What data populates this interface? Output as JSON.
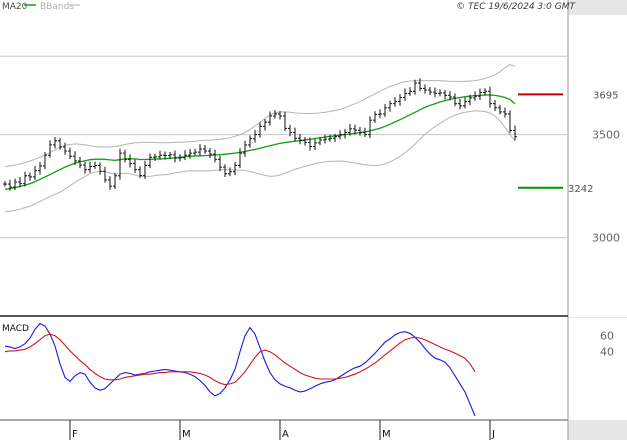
{
  "header": {
    "legend_ma": "MA20",
    "legend_bb": "BBands",
    "copyright": "© TEC 19/6/2024 3:0 GMT"
  },
  "colors": {
    "ma": "#10a010",
    "bands": "#b4b4b4",
    "bars": "#111111",
    "resistance": "#c00000",
    "support": "#009000",
    "macd": "#1a1ae0",
    "signal": "#d01818",
    "sidebar": "#e6e6e6",
    "grid": "#c8c8c8"
  },
  "chart_data": [
    {
      "type": "ohlc",
      "name": "price",
      "y_ticks": [
        "3500",
        "3000"
      ],
      "y_tick_values": [
        3500,
        3000
      ],
      "ylim": [
        2620,
        4080
      ],
      "indicators": [
        "MA20",
        "BBands"
      ],
      "x_labels": [
        "F",
        "M",
        "A",
        "M",
        "J"
      ],
      "x_label_index": [
        13,
        35,
        55,
        75,
        97
      ],
      "levels": [
        {
          "label": "3695",
          "value": 3695,
          "role": "resistance"
        },
        {
          "label": "3242",
          "value": 3242,
          "role": "support"
        }
      ],
      "close": [
        3260,
        3245,
        3270,
        3262,
        3300,
        3295,
        3325,
        3348,
        3400,
        3450,
        3470,
        3440,
        3420,
        3395,
        3372,
        3352,
        3330,
        3345,
        3350,
        3322,
        3280,
        3250,
        3300,
        3410,
        3380,
        3360,
        3330,
        3302,
        3350,
        3390,
        3392,
        3400,
        3398,
        3402,
        3386,
        3388,
        3400,
        3410,
        3415,
        3430,
        3420,
        3405,
        3380,
        3342,
        3310,
        3320,
        3350,
        3410,
        3450,
        3480,
        3500,
        3540,
        3560,
        3590,
        3600,
        3590,
        3530,
        3510,
        3482,
        3472,
        3462,
        3442,
        3460,
        3474,
        3478,
        3482,
        3490,
        3500,
        3510,
        3528,
        3521,
        3510,
        3500,
        3570,
        3598,
        3600,
        3630,
        3650,
        3660,
        3680,
        3700,
        3710,
        3750,
        3724,
        3716,
        3706,
        3700,
        3702,
        3690,
        3682,
        3650,
        3640,
        3660,
        3678,
        3686,
        3704,
        3710,
        3650,
        3630,
        3610,
        3600,
        3520,
        3490
      ],
      "ma20": [
        3235,
        3238,
        3242,
        3248,
        3255,
        3262,
        3272,
        3283,
        3294,
        3306,
        3318,
        3330,
        3342,
        3352,
        3362,
        3368,
        3373,
        3378,
        3380,
        3381,
        3380,
        3377,
        3375,
        3378,
        3382,
        3383,
        3382,
        3379,
        3379,
        3380,
        3381,
        3382,
        3383,
        3385,
        3388,
        3390,
        3393,
        3395,
        3396,
        3397,
        3398,
        3399,
        3401,
        3403,
        3405,
        3407,
        3410,
        3414,
        3418,
        3423,
        3428,
        3434,
        3440,
        3446,
        3452,
        3457,
        3461,
        3465,
        3468,
        3471,
        3474,
        3477,
        3481,
        3484,
        3488,
        3491,
        3494,
        3497,
        3500,
        3503,
        3506,
        3509,
        3513,
        3518,
        3524,
        3531,
        3540,
        3550,
        3561,
        3572,
        3584,
        3596,
        3608,
        3620,
        3632,
        3642,
        3650,
        3658,
        3665,
        3671,
        3676,
        3680,
        3683,
        3686,
        3689,
        3690,
        3692,
        3692,
        3690,
        3686,
        3680,
        3670,
        3650
      ],
      "bb_upper": [
        3345,
        3348,
        3352,
        3358,
        3364,
        3372,
        3380,
        3390,
        3400,
        3412,
        3426,
        3440,
        3448,
        3452,
        3455,
        3453,
        3450,
        3446,
        3442,
        3440,
        3439,
        3440,
        3442,
        3446,
        3452,
        3456,
        3460,
        3461,
        3462,
        3462,
        3461,
        3460,
        3460,
        3461,
        3462,
        3463,
        3464,
        3465,
        3468,
        3470,
        3472,
        3473,
        3475,
        3477,
        3480,
        3485,
        3492,
        3500,
        3510,
        3525,
        3542,
        3560,
        3578,
        3595,
        3605,
        3610,
        3610,
        3608,
        3605,
        3603,
        3602,
        3602,
        3603,
        3605,
        3608,
        3612,
        3617,
        3622,
        3630,
        3640,
        3650,
        3660,
        3672,
        3685,
        3698,
        3710,
        3722,
        3733,
        3742,
        3750,
        3756,
        3760,
        3762,
        3762,
        3762,
        3762,
        3762,
        3762,
        3760,
        3758,
        3758,
        3758,
        3758,
        3760,
        3762,
        3766,
        3772,
        3780,
        3790,
        3805,
        3825,
        3840,
        3830
      ],
      "bb_lower": [
        3125,
        3128,
        3132,
        3138,
        3146,
        3152,
        3164,
        3176,
        3188,
        3200,
        3210,
        3220,
        3236,
        3252,
        3269,
        3283,
        3296,
        3310,
        3318,
        3322,
        3321,
        3314,
        3308,
        3310,
        3312,
        3310,
        3304,
        3297,
        3296,
        3298,
        3301,
        3304,
        3306,
        3309,
        3314,
        3317,
        3322,
        3325,
        3324,
        3324,
        3324,
        3325,
        3327,
        3329,
        3330,
        3329,
        3328,
        3328,
        3326,
        3321,
        3314,
        3308,
        3302,
        3297,
        3299,
        3304,
        3312,
        3322,
        3331,
        3339,
        3346,
        3352,
        3359,
        3363,
        3368,
        3370,
        3371,
        3372,
        3370,
        3366,
        3362,
        3358,
        3354,
        3351,
        3350,
        3352,
        3358,
        3367,
        3380,
        3394,
        3412,
        3432,
        3454,
        3478,
        3502,
        3522,
        3538,
        3554,
        3570,
        3584,
        3594,
        3602,
        3608,
        3612,
        3616,
        3614,
        3612,
        3604,
        3590,
        3567,
        3535,
        3500,
        3470
      ]
    },
    {
      "type": "line",
      "name": "MACD",
      "title": "MACD",
      "y_ticks": [
        "60",
        "40"
      ],
      "y_tick_values": [
        60,
        40
      ],
      "ylim": [
        -45,
        82
      ],
      "series": [
        {
          "role": "macd",
          "values": [
            47,
            46,
            44,
            46,
            50,
            57,
            68,
            75,
            72,
            62,
            47,
            25,
            8,
            3,
            10,
            14,
            12,
            2,
            -5,
            -8,
            -6,
            0,
            6,
            12,
            14,
            13,
            11,
            12,
            13,
            15,
            16,
            17,
            18,
            17,
            16,
            15,
            14,
            12,
            9,
            4,
            -2,
            -10,
            -15,
            -12,
            -5,
            5,
            18,
            40,
            60,
            70,
            62,
            45,
            28,
            14,
            5,
            0,
            -3,
            -5,
            -8,
            -10,
            -9,
            -6,
            -3,
            0,
            2,
            3,
            5,
            9,
            13,
            17,
            20,
            22,
            26,
            32,
            38,
            45,
            52,
            56,
            61,
            64,
            65,
            63,
            58,
            52,
            44,
            37,
            32,
            30,
            27,
            20,
            10,
            0,
            -10,
            -25,
            -40
          ]
        },
        {
          "role": "signal",
          "values": [
            40,
            41,
            41,
            42,
            43,
            46,
            50,
            55,
            60,
            62,
            60,
            55,
            48,
            41,
            35,
            29,
            24,
            18,
            13,
            9,
            6,
            5,
            5,
            6,
            8,
            9,
            10,
            11,
            12,
            12,
            13,
            14,
            14,
            15,
            15,
            15,
            15,
            15,
            14,
            13,
            11,
            8,
            4,
            1,
            -1,
            0,
            2,
            8,
            15,
            24,
            33,
            40,
            42,
            40,
            36,
            31,
            26,
            22,
            18,
            14,
            11,
            9,
            7,
            6,
            6,
            6,
            6,
            7,
            8,
            10,
            12,
            15,
            18,
            22,
            26,
            31,
            36,
            41,
            46,
            51,
            55,
            57,
            58,
            57,
            55,
            52,
            49,
            46,
            43,
            41,
            38,
            35,
            32,
            25,
            15
          ]
        }
      ]
    }
  ]
}
